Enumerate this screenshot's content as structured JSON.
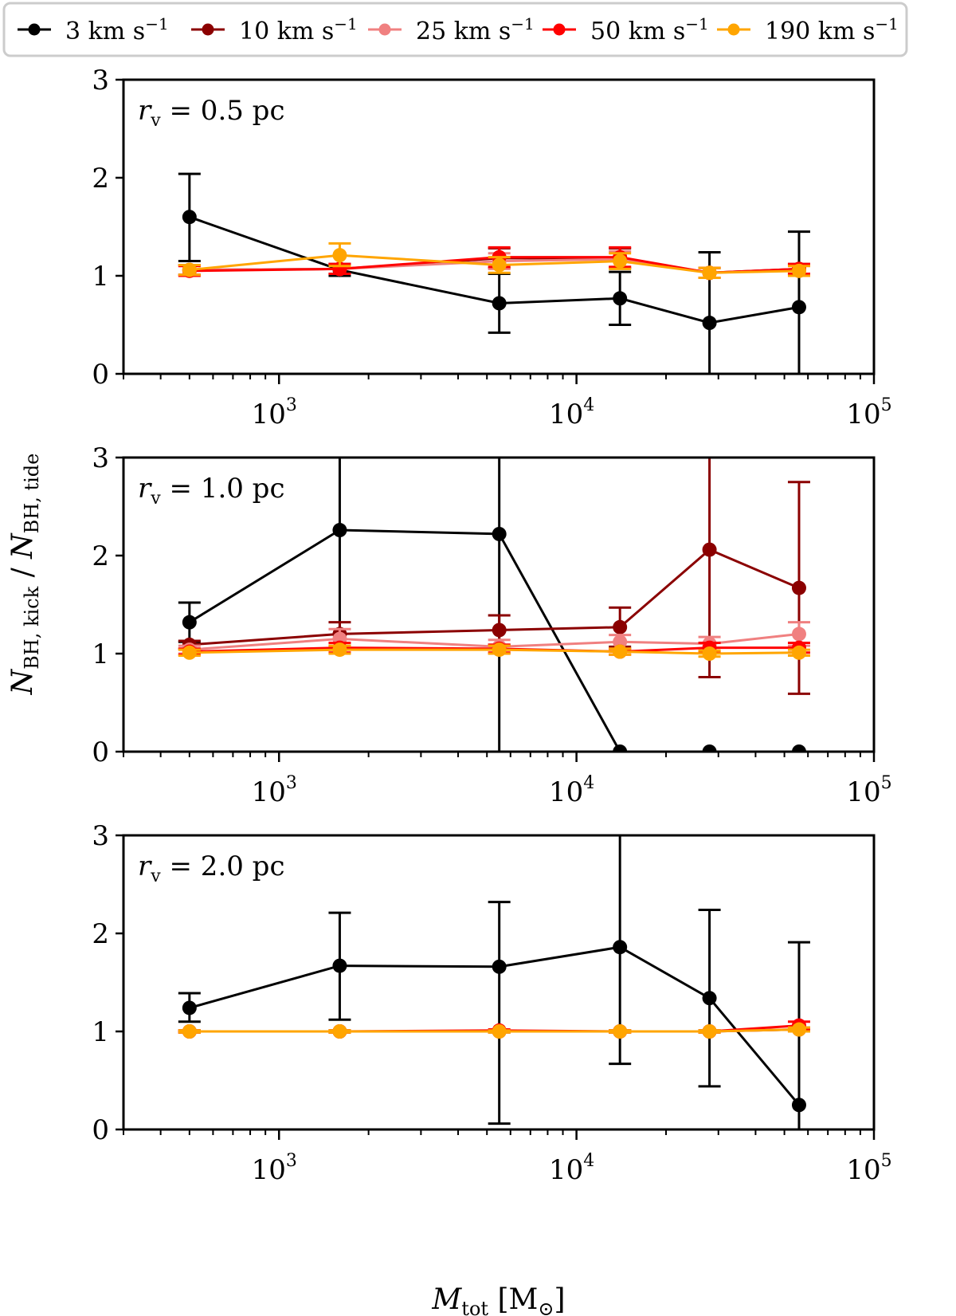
{
  "chart_data": {
    "type": "line",
    "x_scale": "log",
    "xlim": [
      300,
      100000
    ],
    "ylim": [
      0,
      3
    ],
    "yticks": [
      "0",
      "1",
      "2",
      "3"
    ],
    "xticks": [
      {
        "value": 1000,
        "base": "10",
        "exp": "3"
      },
      {
        "value": 10000,
        "base": "10",
        "exp": "4"
      },
      {
        "value": 100000,
        "base": "10",
        "exp": "5"
      }
    ],
    "xlabel": {
      "main": "M",
      "sub": "tot",
      "units": "[M",
      "units_sub": "⊙",
      "units_close": "]"
    },
    "ylabel": {
      "num": "N",
      "num_sub": "BH, kick",
      "sep": " / ",
      "den": "N",
      "den_sub": "BH, tide"
    },
    "legend": {
      "position": "top",
      "entries": [
        {
          "value": "3",
          "unit": "km s",
          "exp": "−1",
          "color": "#000000"
        },
        {
          "value": "10",
          "unit": "km s",
          "exp": "−1",
          "color": "#8b0000"
        },
        {
          "value": "25",
          "unit": "km s",
          "exp": "−1",
          "color": "#f08080"
        },
        {
          "value": "50",
          "unit": "km s",
          "exp": "−1",
          "color": "#ff0000"
        },
        {
          "value": "190",
          "unit": "km s",
          "exp": "−1",
          "color": "#ffa500"
        }
      ]
    },
    "x": [
      500,
      1600,
      5500,
      14000,
      28000,
      56000
    ],
    "panels": [
      {
        "label": {
          "sym": "r",
          "sub": "v",
          "text": " = 0.5 pc"
        },
        "series": [
          {
            "color": "#000000",
            "y": [
              1.6,
              1.06,
              0.72,
              0.77,
              0.52,
              0.68
            ],
            "yerr_lo": [
              0.45,
              0.06,
              0.3,
              0.27,
              0.52,
              0.68
            ],
            "yerr_hi": [
              0.44,
              0.06,
              0.3,
              0.27,
              0.72,
              0.77
            ]
          },
          {
            "color": "#8b0000",
            "y": [
              1.06,
              1.07,
              1.18,
              1.18,
              1.03,
              1.07
            ],
            "yerr_lo": [
              0.05,
              0.05,
              0.1,
              0.1,
              0.05,
              0.05
            ],
            "yerr_hi": [
              0.05,
              0.05,
              0.1,
              0.1,
              0.05,
              0.05
            ]
          },
          {
            "color": "#f08080",
            "y": [
              1.06,
              1.07,
              1.15,
              1.17,
              1.03,
              1.06
            ],
            "yerr_lo": [
              0.05,
              0.05,
              0.08,
              0.08,
              0.05,
              0.05
            ],
            "yerr_hi": [
              0.05,
              0.05,
              0.08,
              0.08,
              0.05,
              0.05
            ]
          },
          {
            "color": "#ff0000",
            "y": [
              1.05,
              1.07,
              1.19,
              1.19,
              1.03,
              1.07
            ],
            "yerr_lo": [
              0.05,
              0.05,
              0.1,
              0.1,
              0.05,
              0.05
            ],
            "yerr_hi": [
              0.05,
              0.05,
              0.1,
              0.1,
              0.05,
              0.05
            ]
          },
          {
            "color": "#ffa500",
            "y": [
              1.06,
              1.21,
              1.11,
              1.15,
              1.03,
              1.05
            ],
            "yerr_lo": [
              0.05,
              0.11,
              0.08,
              0.08,
              0.05,
              0.05
            ],
            "yerr_hi": [
              0.05,
              0.12,
              0.08,
              0.08,
              0.05,
              0.05
            ]
          }
        ]
      },
      {
        "label": {
          "sym": "r",
          "sub": "v",
          "text": " = 1.0 pc"
        },
        "series": [
          {
            "color": "#000000",
            "y": [
              1.32,
              2.26,
              2.22,
              0.0,
              0.0,
              0.0
            ],
            "yerr_lo": [
              0.2,
              1.2,
              2.22,
              0,
              0,
              0
            ],
            "yerr_hi": [
              0.2,
              1.5,
              1.5,
              0,
              0,
              0
            ]
          },
          {
            "color": "#8b0000",
            "y": [
              1.09,
              1.2,
              1.24,
              1.27,
              2.06,
              1.67
            ],
            "yerr_lo": [
              0.04,
              0.12,
              0.15,
              0.2,
              1.3,
              1.08
            ],
            "yerr_hi": [
              0.04,
              0.12,
              0.15,
              0.2,
              1.5,
              1.08
            ]
          },
          {
            "color": "#f08080",
            "y": [
              1.04,
              1.15,
              1.07,
              1.12,
              1.1,
              1.2
            ],
            "yerr_lo": [
              0.04,
              0.1,
              0.07,
              0.07,
              0.07,
              0.12
            ],
            "yerr_hi": [
              0.04,
              0.1,
              0.07,
              0.07,
              0.07,
              0.12
            ]
          },
          {
            "color": "#ff0000",
            "y": [
              1.02,
              1.06,
              1.05,
              1.02,
              1.06,
              1.06
            ],
            "yerr_lo": [
              0.03,
              0.05,
              0.04,
              0.03,
              0.05,
              0.05
            ],
            "yerr_hi": [
              0.03,
              0.05,
              0.04,
              0.03,
              0.05,
              0.05
            ]
          },
          {
            "color": "#ffa500",
            "y": [
              1.01,
              1.04,
              1.04,
              1.02,
              1.0,
              1.01
            ],
            "yerr_lo": [
              0.03,
              0.04,
              0.04,
              0.03,
              0.03,
              0.03
            ],
            "yerr_hi": [
              0.03,
              0.04,
              0.04,
              0.03,
              0.03,
              0.03
            ]
          }
        ]
      },
      {
        "label": {
          "sym": "r",
          "sub": "v",
          "text": " = 2.0 pc"
        },
        "series": [
          {
            "color": "#000000",
            "y": [
              1.24,
              1.67,
              1.66,
              1.86,
              1.34,
              0.25
            ],
            "yerr_lo": [
              0.14,
              0.55,
              1.6,
              1.19,
              0.9,
              0.25
            ],
            "yerr_hi": [
              0.15,
              0.54,
              0.66,
              1.5,
              0.9,
              1.66
            ]
          },
          {
            "color": "#8b0000",
            "y": [
              1.0,
              1.0,
              1.0,
              1.0,
              1.0,
              1.02
            ],
            "yerr_lo": [
              0.01,
              0.01,
              0.01,
              0.01,
              0.01,
              0.02
            ],
            "yerr_hi": [
              0.01,
              0.01,
              0.01,
              0.01,
              0.01,
              0.02
            ]
          },
          {
            "color": "#f08080",
            "y": [
              1.0,
              1.0,
              1.0,
              1.0,
              1.0,
              1.02
            ],
            "yerr_lo": [
              0.01,
              0.01,
              0.01,
              0.01,
              0.01,
              0.02
            ],
            "yerr_hi": [
              0.01,
              0.01,
              0.01,
              0.01,
              0.01,
              0.02
            ]
          },
          {
            "color": "#ff0000",
            "y": [
              1.0,
              1.0,
              1.01,
              1.0,
              1.0,
              1.06
            ],
            "yerr_lo": [
              0.01,
              0.01,
              0.01,
              0.01,
              0.01,
              0.04
            ],
            "yerr_hi": [
              0.01,
              0.01,
              0.01,
              0.01,
              0.01,
              0.04
            ]
          },
          {
            "color": "#ffa500",
            "y": [
              1.0,
              1.0,
              1.0,
              1.0,
              1.0,
              1.02
            ],
            "yerr_lo": [
              0.01,
              0.01,
              0.01,
              0.01,
              0.01,
              0.02
            ],
            "yerr_hi": [
              0.01,
              0.01,
              0.01,
              0.01,
              0.01,
              0.02
            ]
          }
        ]
      }
    ]
  }
}
